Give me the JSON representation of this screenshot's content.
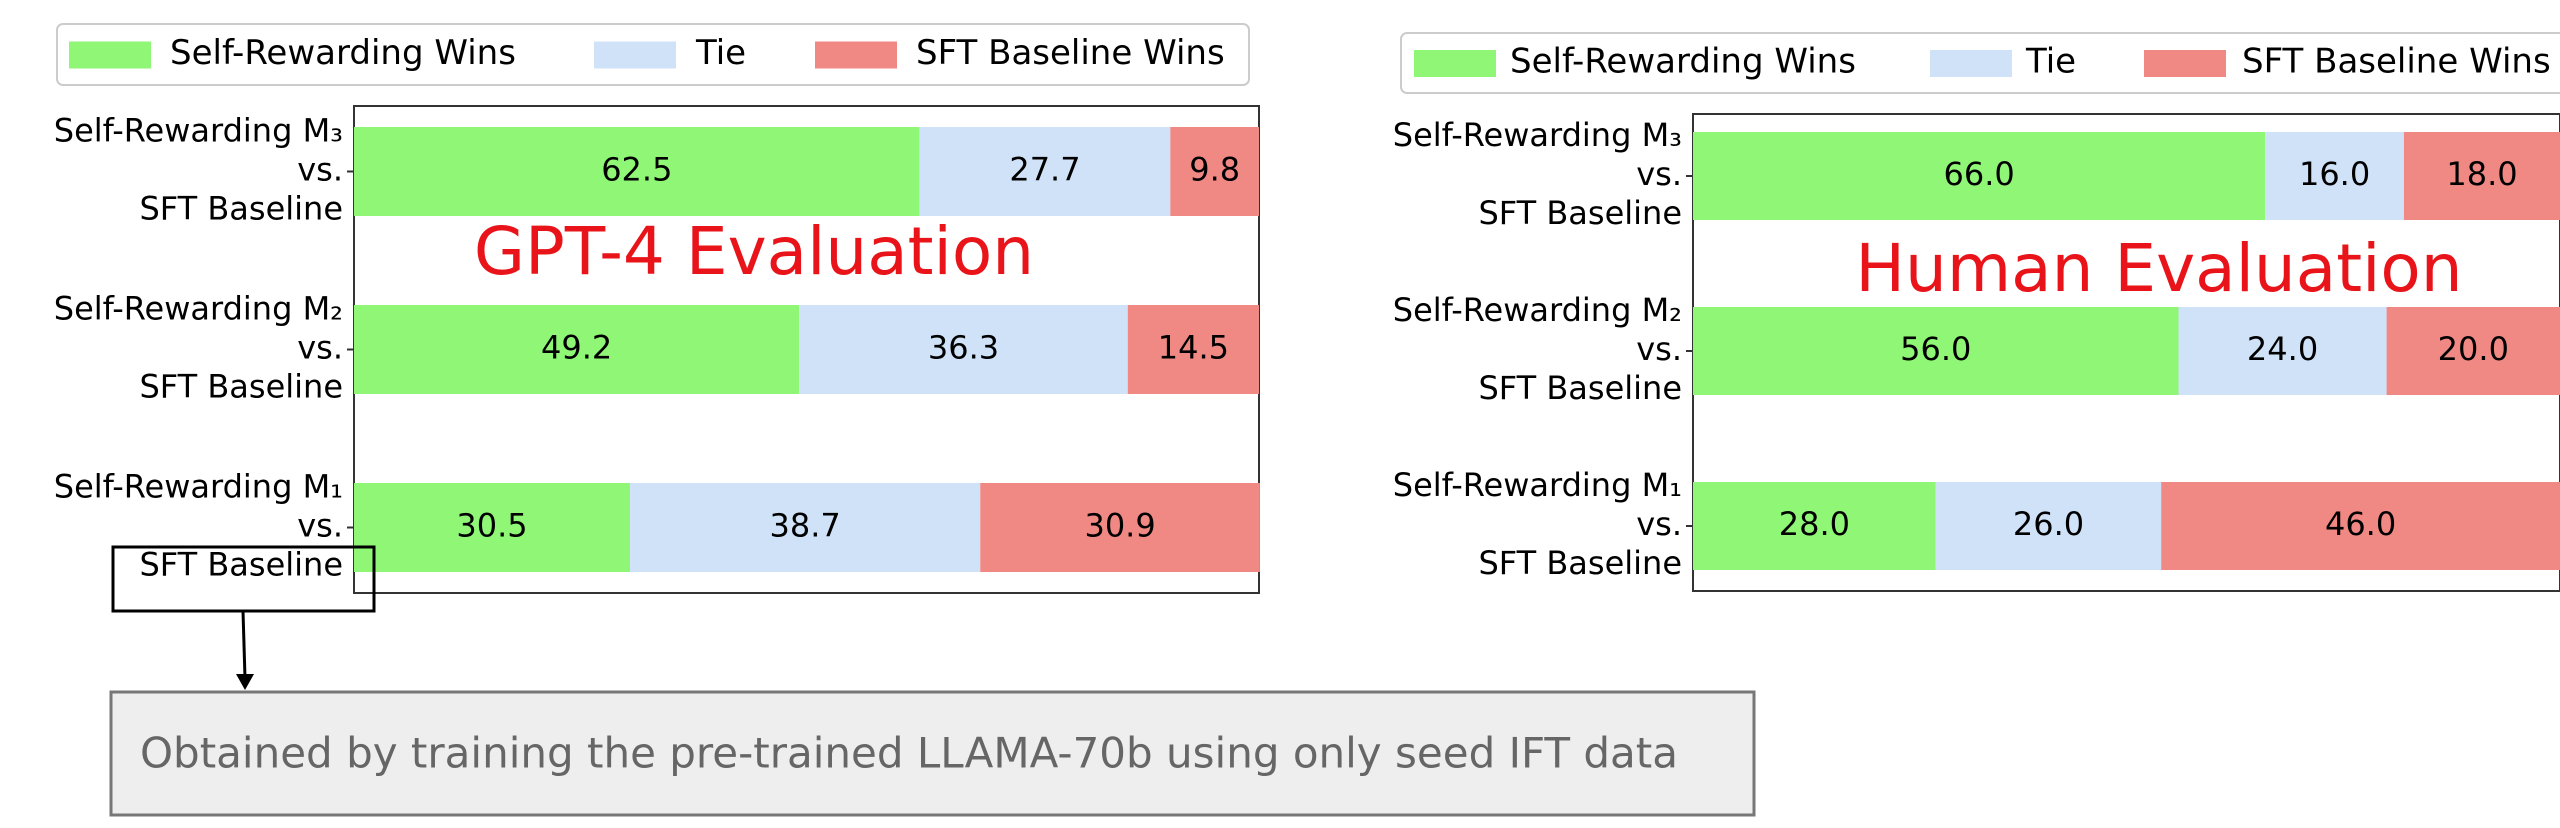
{
  "chart_data": [
    {
      "type": "bar",
      "orientation": "horizontal",
      "stacked": true,
      "title": "GPT-4 Evaluation",
      "categories": [
        [
          "Self-Rewarding M₃",
          "vs.",
          "SFT Baseline"
        ],
        [
          "Self-Rewarding M₂",
          "vs.",
          "SFT Baseline"
        ],
        [
          "Self-Rewarding M₁",
          "vs.",
          "SFT Baseline"
        ]
      ],
      "series": [
        {
          "name": "Self-Rewarding Wins",
          "color": "#8ff676",
          "values": [
            62.5,
            49.2,
            30.5
          ]
        },
        {
          "name": "Tie",
          "color": "#cfe2f8",
          "values": [
            27.7,
            36.3,
            38.7
          ]
        },
        {
          "name": "SFT Baseline Wins",
          "color": "#f08883",
          "values": [
            9.8,
            14.5,
            30.9
          ]
        }
      ],
      "xlim": [
        0,
        100
      ],
      "legend": "top"
    },
    {
      "type": "bar",
      "orientation": "horizontal",
      "stacked": true,
      "title": "Human Evaluation",
      "categories": [
        [
          "Self-Rewarding M₃",
          "vs.",
          "SFT Baseline"
        ],
        [
          "Self-Rewarding M₂",
          "vs.",
          "SFT Baseline"
        ],
        [
          "Self-Rewarding M₁",
          "vs.",
          "SFT Baseline"
        ]
      ],
      "series": [
        {
          "name": "Self-Rewarding Wins",
          "color": "#8ff676",
          "values": [
            66,
            56,
            28
          ],
          "value_labels": [
            "66.0",
            "56.0",
            "28.0"
          ]
        },
        {
          "name": "Tie",
          "color": "#cfe2f8",
          "values": [
            16,
            24,
            26
          ],
          "value_labels": [
            "16.0",
            "24.0",
            "26.0"
          ]
        },
        {
          "name": "SFT Baseline Wins",
          "color": "#f08883",
          "values": [
            18,
            20,
            46
          ],
          "value_labels": [
            "18.0",
            "20.0",
            "46.0"
          ]
        }
      ],
      "xlim": [
        0,
        100
      ],
      "legend": "top"
    }
  ],
  "callout": {
    "text": "Obtained by training the pre-trained LLAMA-70b using only seed IFT data"
  }
}
